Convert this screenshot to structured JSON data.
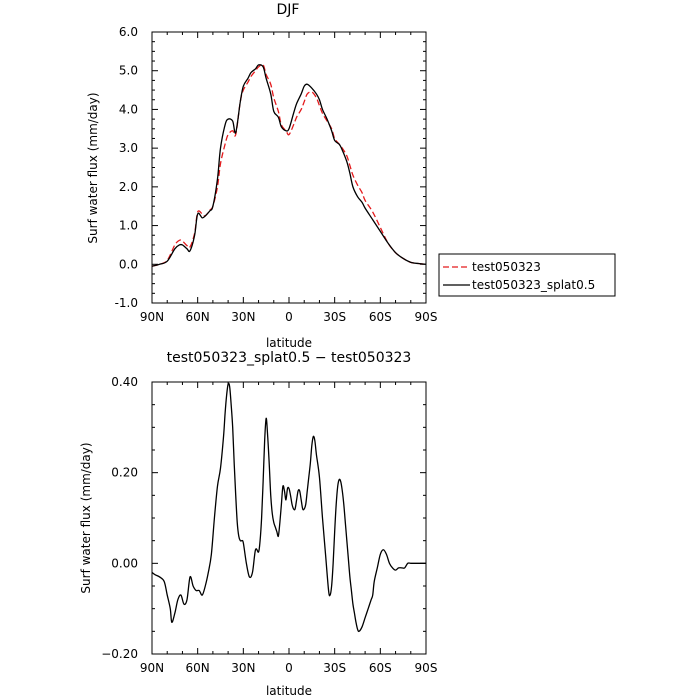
{
  "chart_data": [
    {
      "type": "line",
      "title": "DJF",
      "xlabel": "latitude",
      "ylabel": "Surf water flux (mm/day)",
      "xlim": [
        -90,
        90
      ],
      "ylim": [
        -1.0,
        6.0
      ],
      "x_ticks": [
        -90,
        -60,
        -30,
        0,
        30,
        60,
        90
      ],
      "x_tick_labels": [
        "90N",
        "60N",
        "30N",
        "0",
        "30S",
        "60S",
        "90S"
      ],
      "y_ticks": [
        -1.0,
        0.0,
        1.0,
        2.0,
        3.0,
        4.0,
        5.0,
        6.0
      ],
      "y_tick_labels": [
        "-1.0",
        "0.0",
        "1.0",
        "2.0",
        "3.0",
        "4.0",
        "5.0",
        "6.0"
      ],
      "legend": "right",
      "series": [
        {
          "name": "test050323",
          "color": "#e41a1c",
          "dash": "dashed",
          "x": [
            -90,
            -85,
            -80,
            -75,
            -72,
            -70,
            -67,
            -65,
            -62,
            -60,
            -57,
            -55,
            -52,
            -50,
            -47,
            -45,
            -42,
            -40,
            -37,
            -35,
            -32,
            -30,
            -27,
            -25,
            -22,
            -20,
            -17,
            -15,
            -12,
            -10,
            -7,
            -5,
            -2,
            0,
            3,
            5,
            8,
            10,
            12,
            15,
            18,
            20,
            22,
            25,
            28,
            30,
            33,
            35,
            38,
            40,
            42,
            45,
            48,
            50,
            55,
            60,
            65,
            70,
            75,
            80,
            85,
            90
          ],
          "y": [
            -0.05,
            0.0,
            0.1,
            0.5,
            0.62,
            0.6,
            0.48,
            0.45,
            0.8,
            1.35,
            1.3,
            1.25,
            1.4,
            1.5,
            2.0,
            2.6,
            3.1,
            3.35,
            3.45,
            3.35,
            4.2,
            4.5,
            4.7,
            4.85,
            5.0,
            5.1,
            5.15,
            4.9,
            4.65,
            4.3,
            3.95,
            3.6,
            3.45,
            3.35,
            3.6,
            3.8,
            4.0,
            4.2,
            4.4,
            4.45,
            4.3,
            4.1,
            3.9,
            3.7,
            3.5,
            3.25,
            3.1,
            3.0,
            2.8,
            2.55,
            2.3,
            2.05,
            1.85,
            1.65,
            1.35,
            0.95,
            0.55,
            0.3,
            0.15,
            0.05,
            0.02,
            0.0
          ]
        },
        {
          "name": "test050323_splat0.5",
          "color": "#000000",
          "dash": "solid",
          "x": [
            -90,
            -85,
            -80,
            -75,
            -72,
            -70,
            -67,
            -65,
            -62,
            -60,
            -57,
            -55,
            -52,
            -50,
            -47,
            -45,
            -42,
            -40,
            -37,
            -35,
            -32,
            -30,
            -27,
            -25,
            -22,
            -20,
            -17,
            -15,
            -12,
            -10,
            -7,
            -5,
            -2,
            0,
            3,
            5,
            8,
            10,
            12,
            15,
            18,
            20,
            22,
            25,
            28,
            30,
            33,
            35,
            38,
            40,
            42,
            45,
            48,
            50,
            55,
            60,
            65,
            70,
            75,
            80,
            85,
            90
          ],
          "y": [
            -0.05,
            0.0,
            0.08,
            0.4,
            0.5,
            0.5,
            0.4,
            0.35,
            0.75,
            1.3,
            1.2,
            1.25,
            1.38,
            1.5,
            2.2,
            3.0,
            3.6,
            3.75,
            3.7,
            3.4,
            4.2,
            4.6,
            4.8,
            4.95,
            5.05,
            5.15,
            5.1,
            4.8,
            4.4,
            3.95,
            3.8,
            3.55,
            3.45,
            3.5,
            3.9,
            4.15,
            4.4,
            4.6,
            4.65,
            4.55,
            4.4,
            4.25,
            4.0,
            3.75,
            3.45,
            3.2,
            3.1,
            2.95,
            2.65,
            2.35,
            2.0,
            1.75,
            1.6,
            1.45,
            1.15,
            0.85,
            0.55,
            0.3,
            0.15,
            0.05,
            0.02,
            0.0
          ]
        }
      ]
    },
    {
      "type": "line",
      "title": "test050323_splat0.5 − test050323",
      "xlabel": "latitude",
      "ylabel": "Surf water flux (mm/day)",
      "xlim": [
        -90,
        90
      ],
      "ylim": [
        -0.2,
        0.4
      ],
      "x_ticks": [
        -90,
        -60,
        -30,
        0,
        30,
        60,
        90
      ],
      "x_tick_labels": [
        "90N",
        "60N",
        "30N",
        "0",
        "30S",
        "60S",
        "90S"
      ],
      "y_ticks": [
        -0.2,
        0.0,
        0.2,
        0.4
      ],
      "y_tick_labels": [
        "−0.20",
        "0.00",
        "0.20",
        "0.40"
      ],
      "series": [
        {
          "name": "",
          "color": "#000000",
          "dash": "solid",
          "x": [
            -90,
            -88,
            -85,
            -82,
            -80,
            -78,
            -77,
            -75,
            -73,
            -71,
            -69,
            -67,
            -65,
            -63,
            -61,
            -59,
            -57,
            -55,
            -53,
            -51,
            -49,
            -47,
            -45,
            -43,
            -42,
            -41,
            -40,
            -39,
            -38,
            -37,
            -36,
            -35,
            -34,
            -33,
            -32,
            -31,
            -30,
            -28,
            -26,
            -24,
            -22,
            -20,
            -19,
            -18,
            -17,
            -16,
            -15,
            -14,
            -13,
            -12,
            -11,
            -10,
            -9,
            -8,
            -7,
            -6,
            -5,
            -4,
            -3,
            -2,
            -1,
            0,
            1,
            2,
            3,
            4,
            5,
            6,
            7,
            8,
            9,
            10,
            11,
            12,
            13,
            14,
            15,
            16,
            17,
            18,
            20,
            22,
            24,
            26,
            27,
            28,
            29,
            30,
            31,
            32,
            33,
            34,
            35,
            36,
            37,
            38,
            39,
            40,
            41,
            42,
            43,
            44,
            45,
            46,
            48,
            50,
            52,
            54,
            55,
            56,
            58,
            60,
            62,
            64,
            66,
            68,
            70,
            72,
            74,
            76,
            78,
            80,
            82,
            84,
            86,
            88,
            90
          ],
          "y": [
            -0.02,
            -0.025,
            -0.03,
            -0.04,
            -0.07,
            -0.1,
            -0.13,
            -0.11,
            -0.08,
            -0.07,
            -0.09,
            -0.08,
            -0.03,
            -0.05,
            -0.06,
            -0.06,
            -0.07,
            -0.05,
            -0.02,
            0.02,
            0.1,
            0.17,
            0.21,
            0.28,
            0.33,
            0.37,
            0.395,
            0.39,
            0.35,
            0.3,
            0.22,
            0.15,
            0.09,
            0.06,
            0.05,
            0.05,
            0.045,
            0.0,
            -0.03,
            -0.02,
            0.03,
            0.025,
            0.05,
            0.1,
            0.18,
            0.27,
            0.32,
            0.28,
            0.22,
            0.15,
            0.11,
            0.09,
            0.08,
            0.07,
            0.06,
            0.09,
            0.13,
            0.17,
            0.16,
            0.14,
            0.165,
            0.165,
            0.15,
            0.13,
            0.12,
            0.12,
            0.14,
            0.16,
            0.16,
            0.14,
            0.12,
            0.12,
            0.13,
            0.16,
            0.19,
            0.22,
            0.26,
            0.28,
            0.27,
            0.24,
            0.19,
            0.1,
            0.02,
            -0.06,
            -0.07,
            -0.05,
            0.0,
            0.07,
            0.13,
            0.17,
            0.185,
            0.18,
            0.16,
            0.13,
            0.09,
            0.05,
            0.01,
            -0.03,
            -0.06,
            -0.09,
            -0.11,
            -0.13,
            -0.145,
            -0.15,
            -0.14,
            -0.12,
            -0.1,
            -0.08,
            -0.07,
            -0.04,
            -0.01,
            0.02,
            0.03,
            0.02,
            0.0,
            -0.01,
            -0.015,
            -0.01,
            -0.01,
            -0.01,
            0.0,
            0.0,
            0.0,
            0.0,
            0.0,
            0.0,
            0.0
          ]
        }
      ]
    }
  ]
}
